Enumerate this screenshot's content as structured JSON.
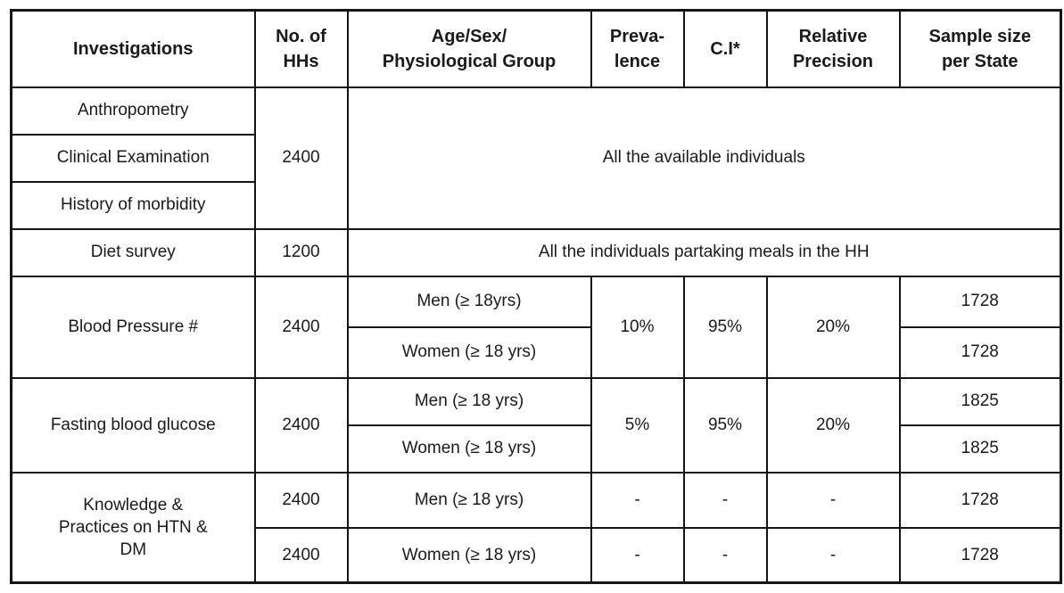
{
  "table": {
    "header": {
      "investigations": "Investigations",
      "no_of_hhs": "No. of\nHHs",
      "age_sex_group": "Age/Sex/\nPhysiological Group",
      "prevalence": "Preva-\nlence",
      "ci": "C.I*",
      "relative_precision": "Relative\nPrecision",
      "sample_size": "Sample size\nper State"
    },
    "sections": [
      {
        "name": "anthropometry-group",
        "investigations": [
          "Anthropometry",
          "Clinical Examination",
          "History of morbidity"
        ],
        "no_of_hhs": "2400",
        "population": "All the available individuals"
      },
      {
        "name": "diet-survey",
        "investigation": "Diet survey",
        "no_of_hhs": "1200",
        "population": "All the individuals partaking meals in the HH"
      },
      {
        "name": "blood-pressure",
        "investigation": "Blood Pressure #",
        "no_of_hhs": "2400",
        "groups": [
          "Men (≥ 18yrs)",
          "Women (≥ 18 yrs)"
        ],
        "prevalence": "10%",
        "ci": "95%",
        "relative_precision": "20%",
        "sample_sizes": [
          "1728",
          "1728"
        ]
      },
      {
        "name": "fasting-blood-glucose",
        "investigation": "Fasting blood glucose",
        "no_of_hhs": "2400",
        "groups": [
          "Men (≥ 18 yrs)",
          "Women (≥ 18 yrs)"
        ],
        "prevalence": "5%",
        "ci": "95%",
        "relative_precision": "20%",
        "sample_sizes": [
          "1825",
          "1825"
        ]
      },
      {
        "name": "knowledge-practices",
        "investigation": "Knowledge &\nPractices on HTN &\nDM",
        "rows": [
          {
            "no_of_hhs": "2400",
            "group": "Men (≥ 18 yrs)",
            "prevalence": "-",
            "ci": "-",
            "relative_precision": "-",
            "sample_size": "1728"
          },
          {
            "no_of_hhs": "2400",
            "group": "Women (≥ 18 yrs)",
            "prevalence": "-",
            "ci": "-",
            "relative_precision": "-",
            "sample_size": "1728"
          }
        ]
      }
    ]
  }
}
